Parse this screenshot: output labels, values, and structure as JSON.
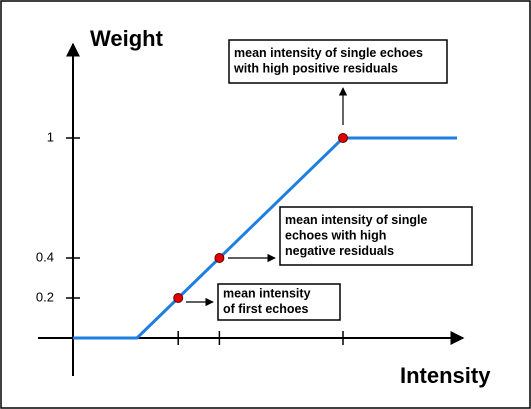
{
  "chart_data": {
    "type": "line",
    "y_axis_label": "Weight",
    "x_axis_label": "Intensity",
    "yticks": [
      0.2,
      0.4,
      1
    ],
    "color": "#1e7fe0",
    "points": [
      {
        "value": 0.2,
        "label": [
          "mean intensity",
          "of first echoes"
        ]
      },
      {
        "value": 0.4,
        "label": [
          "mean intensity of single",
          "echoes with high",
          "negative residuals"
        ]
      },
      {
        "value": 1,
        "label": [
          "mean intensity of single echoes",
          "with high positive residuals"
        ]
      }
    ]
  }
}
